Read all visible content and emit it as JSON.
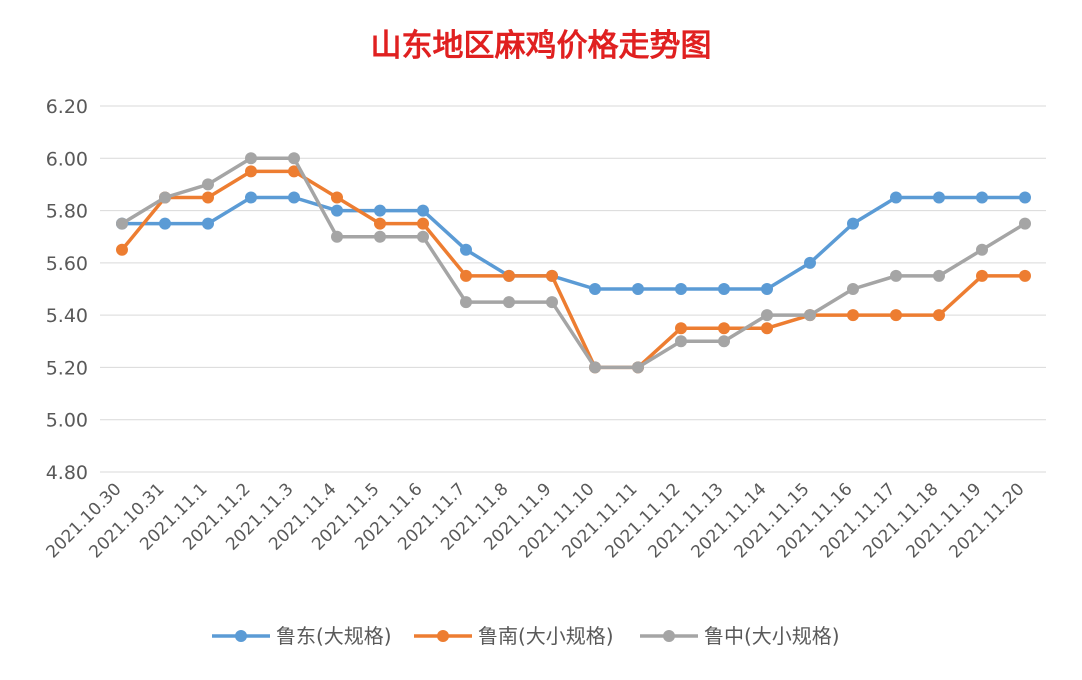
{
  "chart_data": {
    "type": "line",
    "title": "山东地区麻鸡价格走势图",
    "xlabel": "",
    "ylabel": "",
    "ylim": [
      4.8,
      6.2
    ],
    "yticks": [
      "4.80",
      "5.00",
      "5.20",
      "5.40",
      "5.60",
      "5.80",
      "6.00",
      "6.20"
    ],
    "grid": true,
    "legend_position": "bottom",
    "categories": [
      "2021.10.30",
      "2021.10.31",
      "2021.11.1",
      "2021.11.2",
      "2021.11.3",
      "2021.11.4",
      "2021.11.5",
      "2021.11.6",
      "2021.11.7",
      "2021.11.8",
      "2021.11.9",
      "2021.11.10",
      "2021.11.11",
      "2021.11.12",
      "2021.11.13",
      "2021.11.14",
      "2021.11.15",
      "2021.11.16",
      "2021.11.17",
      "2021.11.18",
      "2021.11.19",
      "2021.11.20"
    ],
    "series": [
      {
        "name": "鲁东(大规格)",
        "color": "#5B9BD5",
        "values": [
          5.75,
          5.75,
          5.75,
          5.85,
          5.85,
          5.8,
          5.8,
          5.8,
          5.65,
          5.55,
          5.55,
          5.5,
          5.5,
          5.5,
          5.5,
          5.5,
          5.6,
          5.75,
          5.85,
          5.85,
          5.85,
          5.85
        ]
      },
      {
        "name": "鲁南(大小规格)",
        "color": "#ED7D31",
        "values": [
          5.65,
          5.85,
          5.85,
          5.95,
          5.95,
          5.85,
          5.75,
          5.75,
          5.55,
          5.55,
          5.55,
          5.2,
          5.2,
          5.35,
          5.35,
          5.35,
          5.4,
          5.4,
          5.4,
          5.4,
          5.55,
          5.55
        ]
      },
      {
        "name": "鲁中(大小规格)",
        "color": "#A5A5A5",
        "values": [
          5.75,
          5.85,
          5.9,
          6.0,
          6.0,
          5.7,
          5.7,
          5.7,
          5.45,
          5.45,
          5.45,
          5.2,
          5.2,
          5.3,
          5.3,
          5.4,
          5.4,
          5.5,
          5.55,
          5.55,
          5.65,
          5.75
        ]
      }
    ],
    "title_color": "#E02020",
    "grid_color": "#D9D9D9",
    "text_color": "#595959"
  }
}
